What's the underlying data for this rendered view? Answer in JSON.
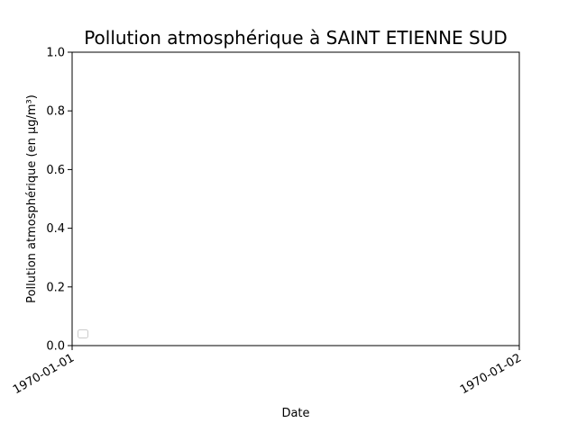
{
  "chart_data": {
    "type": "line",
    "title": "Pollution atmosphérique à SAINT ETIENNE SUD",
    "xlabel": "Date",
    "ylabel": "Pollution atmosphérique (en µg/m³)",
    "x_ticks": [
      "1970-01-01",
      "1970-01-02"
    ],
    "xlim": [
      "1970-01-01",
      "1970-01-02"
    ],
    "y_ticks": [
      0.0,
      0.2,
      0.4,
      0.6,
      0.8,
      1.0
    ],
    "y_tick_labels": [
      "0.0",
      "0.2",
      "0.4",
      "0.6",
      "0.8",
      "1.0"
    ],
    "ylim": [
      0,
      1
    ],
    "series": [],
    "grid": false,
    "legend": {
      "placement": "lower-left",
      "entries": []
    }
  }
}
